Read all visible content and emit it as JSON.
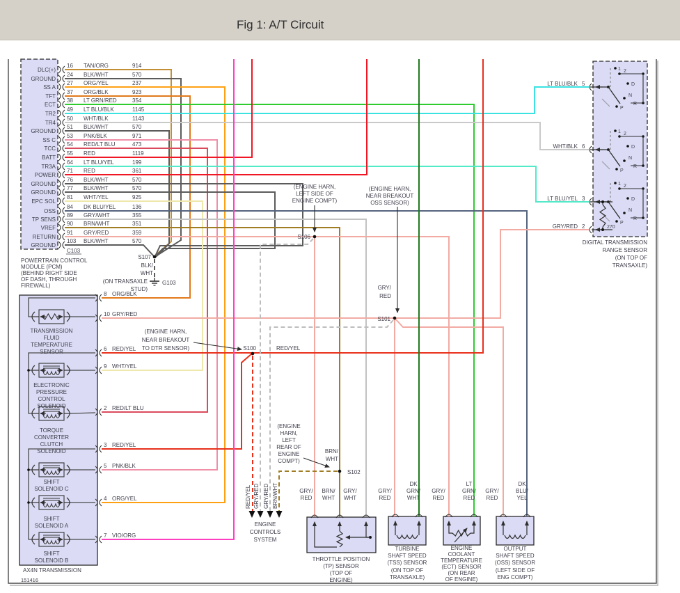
{
  "header": {
    "title": "Fig 1: A/T Circuit"
  },
  "figure_number": "151416",
  "colors": {
    "TAN/ORG": "#C28F35",
    "BLK/WHT": "#5B5B5B",
    "ORG/YEL": "#FFA013",
    "ORG/BLK": "#E2791B",
    "LT GRN/RED": "#2ECC2E",
    "LT BLU/BLK": "#3BE2E2",
    "WHT/BLK": "#C9C9C9",
    "PNK/BLK": "#F08FA8",
    "RED/LT BLU": "#DB4A5C",
    "RED": "#F01623",
    "LT BLU/YEL": "#52EAC8",
    "WHT/YEL": "#EFE8AC",
    "DK BLU/YEL": "#55647E",
    "GRY/WHT": "#C2C2C2",
    "BRN/WHT": "#A07D22",
    "GRY/RED": "#F2ABA3",
    "VIO/ORG": "#FF3FC3",
    "RED/YEL": "#E8301B",
    "DK GRN/WHT": "#1F7A1F",
    "DASH_GRY": "#BDBDBD"
  },
  "pcm": {
    "connector_label": "C103",
    "caption": [
      "POWERTRAIN CONTROL",
      "MODULE (PCM)",
      "(BEHIND RIGHT SIDE",
      "OF DASH, THROUGH",
      "FIREWALL)"
    ],
    "pins": [
      {
        "signal": "DLC(+)",
        "pin": "16",
        "wire": "TAN/ORG",
        "circuit": "914"
      },
      {
        "signal": "GROUND",
        "pin": "24",
        "wire": "BLK/WHT",
        "circuit": "570"
      },
      {
        "signal": "SS A",
        "pin": "27",
        "wire": "ORG/YEL",
        "circuit": "237"
      },
      {
        "signal": "TFT",
        "pin": "37",
        "wire": "ORG/BLK",
        "circuit": "923"
      },
      {
        "signal": "ECT",
        "pin": "38",
        "wire": "LT GRN/RED",
        "circuit": "354"
      },
      {
        "signal": "TR2",
        "pin": "49",
        "wire": "LT BLU/BLK",
        "circuit": "1145"
      },
      {
        "signal": "TR4",
        "pin": "50",
        "wire": "WHT/BLK",
        "circuit": "1143"
      },
      {
        "signal": "GROUND",
        "pin": "51",
        "wire": "BLK/WHT",
        "circuit": "570"
      },
      {
        "signal": "SS C",
        "pin": "53",
        "wire": "PNK/BLK",
        "circuit": "971"
      },
      {
        "signal": "TCC",
        "pin": "54",
        "wire": "RED/LT BLU",
        "circuit": "473"
      },
      {
        "signal": "BATT",
        "pin": "55",
        "wire": "RED",
        "circuit": "1119"
      },
      {
        "signal": "TR3A",
        "pin": "64",
        "wire": "LT BLU/YEL",
        "circuit": "199"
      },
      {
        "signal": "POWER",
        "pin": "71",
        "wire": "RED",
        "circuit": "361"
      },
      {
        "signal": "GROUND",
        "pin": "76",
        "wire": "BLK/WHT",
        "circuit": "570"
      },
      {
        "signal": "GROUND",
        "pin": "77",
        "wire": "BLK/WHT",
        "circuit": "570"
      },
      {
        "signal": "EPC SOL",
        "pin": "81",
        "wire": "WHT/YEL",
        "circuit": "925"
      },
      {
        "signal": "OSS",
        "pin": "84",
        "wire": "DK BLU/YEL",
        "circuit": "136"
      },
      {
        "signal": "TP SENS",
        "pin": "89",
        "wire": "GRY/WHT",
        "circuit": "355"
      },
      {
        "signal": "VREF",
        "pin": "90",
        "wire": "BRN/WHT",
        "circuit": "351"
      },
      {
        "signal": "RETURN",
        "pin": "91",
        "wire": "GRY/RED",
        "circuit": "359"
      },
      {
        "signal": "GROUND",
        "pin": "103",
        "wire": "BLK/WHT",
        "circuit": "570"
      }
    ]
  },
  "transmission": {
    "name": "AX4N TRANSMISSION",
    "pins": [
      {
        "pin": "8",
        "wire": "ORG/BLK"
      },
      {
        "pin": "10",
        "wire": "GRY/RED"
      },
      {
        "pin": "6",
        "wire": "RED/YEL"
      },
      {
        "pin": "9",
        "wire": "WHT/YEL"
      },
      {
        "pin": "2",
        "wire": "RED/LT BLU"
      },
      {
        "pin": "3",
        "wire": "RED/YEL"
      },
      {
        "pin": "5",
        "wire": "PNK/BLK"
      },
      {
        "pin": "4",
        "wire": "ORG/YEL"
      },
      {
        "pin": "7",
        "wire": "VIO/ORG"
      }
    ],
    "components": [
      {
        "id": "tft-sensor",
        "lines": [
          "TRANSMISSION",
          "FLUID",
          "TEMPERATURE",
          "SENSOR"
        ]
      },
      {
        "id": "epc-solenoid",
        "lines": [
          "ELECTRONIC",
          "PRESSURE",
          "CONTROL",
          "SOLENOID"
        ]
      },
      {
        "id": "tcc-solenoid",
        "lines": [
          "TORQUE",
          "CONVERTER",
          "CLUTCH",
          "SOLENOID"
        ]
      },
      {
        "id": "shift-solenoid-c",
        "lines": [
          "SHIFT",
          "SOLENOID C"
        ]
      },
      {
        "id": "shift-solenoid-a",
        "lines": [
          "SHIFT",
          "SOLENOID A"
        ]
      },
      {
        "id": "shift-solenoid-b",
        "lines": [
          "SHIFT",
          "SOLENOID B"
        ]
      }
    ]
  },
  "dtr_sensor": {
    "caption": [
      "DIGITAL TRANSMISSION",
      "RANGE SENSOR",
      "(ON TOP OF",
      "TRANSAXLE)"
    ],
    "pins": [
      {
        "wire": "LT BLU/BLK",
        "pin": "5"
      },
      {
        "wire": "WHT/BLK",
        "pin": "6"
      },
      {
        "wire": "LT BLU/YEL",
        "pin": "3"
      },
      {
        "wire": "GRY/RED",
        "pin": "2"
      }
    ],
    "positions": [
      "1",
      "2",
      "D",
      "N",
      "R",
      "P"
    ],
    "resistor": "270"
  },
  "splices": {
    "s107": "S107",
    "s106": "S106",
    "s101": "S101",
    "s100": "S100",
    "s102": "S102",
    "g103": "G103",
    "s107_wire": [
      "BLK/",
      "WHT"
    ],
    "g103_note": [
      "(ON TRANSAXLE",
      "STUD)"
    ],
    "s101_wire": [
      "GRY/",
      "RED"
    ],
    "s100_wire": "RED/YEL",
    "s102_wire": [
      "BRN/",
      "WHT"
    ]
  },
  "notes": {
    "s106": [
      "(ENGINE HARN,",
      "LEFT SIDE OF",
      "ENGINE COMPT)"
    ],
    "s101": [
      "(ENGINE HARN,",
      "NEAR BREAKOUT",
      "OSS SENSOR)"
    ],
    "s100": [
      "(ENGINE HARN,",
      "NEAR BREAKOUT",
      "TO DTR SENSOR)"
    ],
    "s102": [
      "(ENGINE",
      "HARN,",
      "LEFT",
      "REAR OF",
      "ENGINE",
      "COMPT)"
    ]
  },
  "sensors": [
    {
      "id": "tp-sensor",
      "caption": [
        "THROTTLE POSITION",
        "(TP) SENSOR",
        "(TOP OF",
        "ENGINE)"
      ],
      "wires": [
        [
          "GRY/",
          "RED"
        ],
        [
          "BRN/",
          "WHT"
        ],
        [
          "GRY/",
          "WHT"
        ]
      ]
    },
    {
      "id": "tss-sensor",
      "caption": [
        "TURBINE",
        "SHAFT SPEED",
        "(TSS) SENSOR",
        "(ON TOP OF",
        "TRANSAXLE)"
      ],
      "wires": [
        [
          "GRY/",
          "RED"
        ],
        [
          "DK",
          "GRN/",
          "WHT"
        ]
      ]
    },
    {
      "id": "ect-sensor",
      "caption": [
        "ENGINE",
        "COOLANT",
        "TEMPERATURE",
        "(ECT) SENSOR",
        "(ON REAR",
        "OF ENGINE)"
      ],
      "wires": [
        [
          "GRY/",
          "RED"
        ],
        [
          "LT",
          "GRN/",
          "RED"
        ]
      ]
    },
    {
      "id": "oss-sensor",
      "caption": [
        "OUTPUT",
        "SHAFT SPEED",
        "(OSS) SENSOR",
        "(LEFT SIDE OF",
        "ENG COMPT)"
      ],
      "wires": [
        [
          "GRY/",
          "RED"
        ],
        [
          "DK",
          "BLU/",
          "YEL"
        ]
      ]
    }
  ],
  "engine_controls": {
    "caption": [
      "ENGINE",
      "CONTROLS",
      "SYSTEM"
    ],
    "wires": [
      "RED/YEL",
      "GRY/RED",
      "GRY/RED",
      "BRN/WHT"
    ]
  }
}
